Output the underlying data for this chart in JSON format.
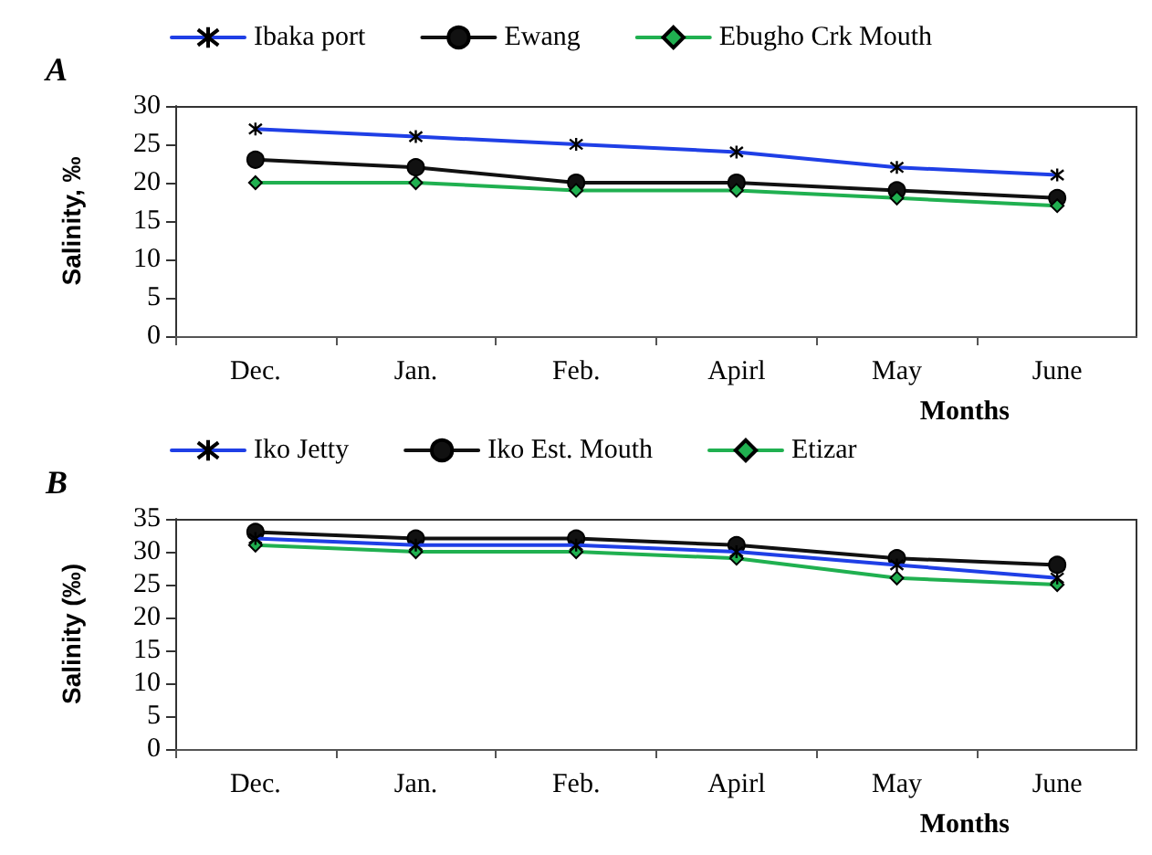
{
  "chart_data": [
    {
      "type": "line",
      "title": "A",
      "xlabel": "Months",
      "ylabel": "Salinity, ‰",
      "categories": [
        "Dec.",
        "Jan.",
        "Feb.",
        "Apirl",
        "May",
        "June"
      ],
      "ylim": [
        0,
        30
      ],
      "yticks": [
        0,
        5,
        10,
        15,
        20,
        25,
        30
      ],
      "grid": false,
      "legend": "top",
      "line_style": "solid",
      "series": [
        {
          "name": "Ibaka port",
          "color": "#1f3fe6",
          "marker": "cross",
          "values": [
            27,
            26,
            25,
            24,
            22,
            21
          ]
        },
        {
          "name": "Ewang",
          "color": "#111111",
          "marker": "circle",
          "values": [
            23,
            22,
            20,
            20,
            19,
            18
          ]
        },
        {
          "name": "Ebugho Crk Mouth",
          "color": "#20b050",
          "marker": "diamond",
          "values": [
            20,
            20,
            19,
            19,
            18,
            17
          ]
        }
      ]
    },
    {
      "type": "line",
      "title": "B",
      "xlabel": "Months",
      "ylabel": "Salinity (‰)",
      "categories": [
        "Dec.",
        "Jan.",
        "Feb.",
        "Apirl",
        "May",
        "June"
      ],
      "ylim": [
        0,
        35
      ],
      "yticks": [
        0,
        5,
        10,
        15,
        20,
        25,
        30,
        35
      ],
      "grid": false,
      "legend": "top",
      "line_style": "solid",
      "series": [
        {
          "name": "Iko Jetty",
          "color": "#1f3fe6",
          "marker": "cross",
          "values": [
            32,
            31,
            31,
            30,
            28,
            26
          ]
        },
        {
          "name": "Iko Est. Mouth",
          "color": "#111111",
          "marker": "circle",
          "values": [
            33,
            32,
            32,
            31,
            29,
            28
          ]
        },
        {
          "name": "Etizar",
          "color": "#20b050",
          "marker": "diamond",
          "values": [
            31,
            30,
            30,
            29,
            26,
            25
          ]
        }
      ]
    }
  ]
}
